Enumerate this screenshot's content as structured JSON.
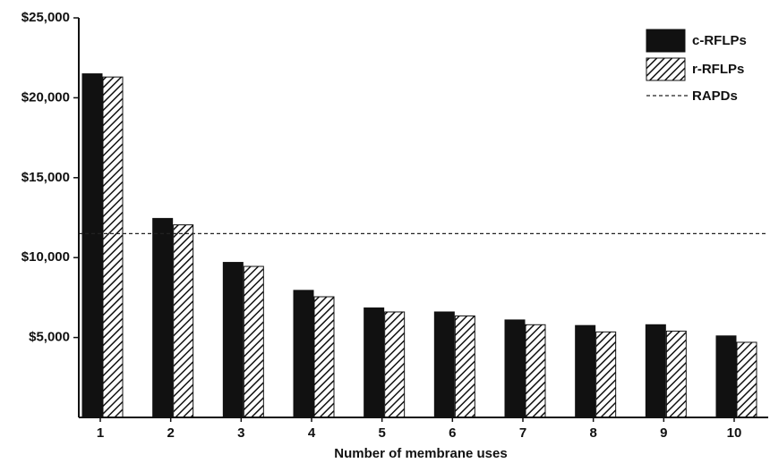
{
  "chart_data": {
    "type": "bar",
    "x_label": "Number of membrane uses",
    "categories": [
      "1",
      "2",
      "3",
      "4",
      "5",
      "6",
      "7",
      "8",
      "9",
      "10"
    ],
    "series": [
      {
        "name": "c-RFLPs",
        "color": "#111111",
        "pattern": "solid",
        "values": [
          21500,
          12450,
          9700,
          7950,
          6850,
          6600,
          6100,
          5750,
          5800,
          5100
        ]
      },
      {
        "name": "r-RFLPs",
        "color": "#111111",
        "pattern": "hatch",
        "values": [
          21300,
          12050,
          9450,
          7550,
          6600,
          6350,
          5800,
          5350,
          5400,
          4700
        ]
      }
    ],
    "lines": [
      {
        "name": "RAPDs",
        "value": 11500,
        "color": "#222222",
        "style": "dashed"
      }
    ],
    "ylim": [
      0,
      25000
    ],
    "yticks": [
      {
        "value": 5000,
        "label": "$5,000"
      },
      {
        "value": 10000,
        "label": "$10,000"
      },
      {
        "value": 15000,
        "label": "$15,000"
      },
      {
        "value": 20000,
        "label": "$20,000"
      },
      {
        "value": 25000,
        "label": "$25,000"
      }
    ],
    "legend": "top-right"
  }
}
